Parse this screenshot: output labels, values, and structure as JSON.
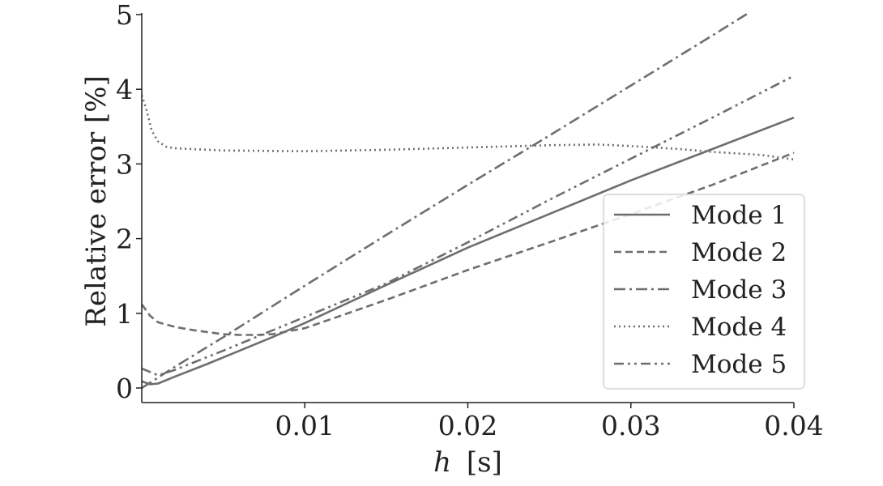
{
  "chart_data": {
    "type": "line",
    "xlabel_var": "h",
    "xlabel_unit": "[s]",
    "ylabel": "Relative error [%]",
    "xlim": [
      0,
      0.04
    ],
    "ylim": [
      0,
      5
    ],
    "xticks": [
      0.01,
      0.02,
      0.03,
      0.04
    ],
    "xtick_labels": [
      "0.01",
      "0.02",
      "0.03",
      "0.04"
    ],
    "yticks": [
      0,
      1,
      2,
      3,
      4,
      5
    ],
    "ytick_labels": [
      "0",
      "1",
      "2",
      "3",
      "4",
      "5"
    ],
    "grid": false,
    "legend_position": "lower-right",
    "line_color": "#6e6e6e",
    "series": [
      {
        "name": "Mode 1",
        "dash": "solid",
        "x": [
          0,
          0.0005,
          0.001,
          0.002,
          0.004,
          0.006,
          0.008,
          0.01,
          0.015,
          0.02,
          0.025,
          0.03,
          0.035,
          0.04
        ],
        "y": [
          0.09,
          0.05,
          0.06,
          0.15,
          0.32,
          0.5,
          0.68,
          0.87,
          1.38,
          1.88,
          2.33,
          2.78,
          3.2,
          3.62
        ]
      },
      {
        "name": "Mode 2",
        "dash": "dashed",
        "x": [
          0,
          0.0005,
          0.001,
          0.002,
          0.003,
          0.004,
          0.005,
          0.006,
          0.007,
          0.008,
          0.01,
          0.015,
          0.02,
          0.025,
          0.03,
          0.035,
          0.04
        ],
        "y": [
          1.12,
          0.97,
          0.88,
          0.82,
          0.78,
          0.75,
          0.72,
          0.71,
          0.71,
          0.72,
          0.8,
          1.18,
          1.58,
          1.95,
          2.33,
          2.72,
          3.15
        ]
      },
      {
        "name": "Mode 3",
        "dash": "dashdot",
        "x": [
          0,
          0.002,
          0.005,
          0.01,
          0.015,
          0.02,
          0.025,
          0.03,
          0.035,
          0.04
        ],
        "y": [
          0.0,
          0.28,
          0.68,
          1.37,
          2.05,
          2.72,
          3.38,
          4.05,
          4.72,
          5.4
        ]
      },
      {
        "name": "Mode 4",
        "dash": "dotted",
        "x": [
          0,
          0.0003,
          0.0006,
          0.001,
          0.0015,
          0.002,
          0.005,
          0.01,
          0.015,
          0.02,
          0.025,
          0.028,
          0.03,
          0.033,
          0.035,
          0.038,
          0.04
        ],
        "y": [
          3.92,
          3.72,
          3.45,
          3.3,
          3.23,
          3.21,
          3.18,
          3.17,
          3.19,
          3.22,
          3.25,
          3.26,
          3.24,
          3.2,
          3.16,
          3.12,
          3.06
        ]
      },
      {
        "name": "Mode 5",
        "dash": "dashdotdot",
        "x": [
          0,
          0.001,
          0.002,
          0.005,
          0.01,
          0.015,
          0.02,
          0.025,
          0.03,
          0.035,
          0.04
        ],
        "y": [
          0.26,
          0.17,
          0.24,
          0.5,
          0.95,
          1.4,
          1.95,
          2.52,
          3.07,
          3.62,
          4.18
        ]
      }
    ]
  }
}
